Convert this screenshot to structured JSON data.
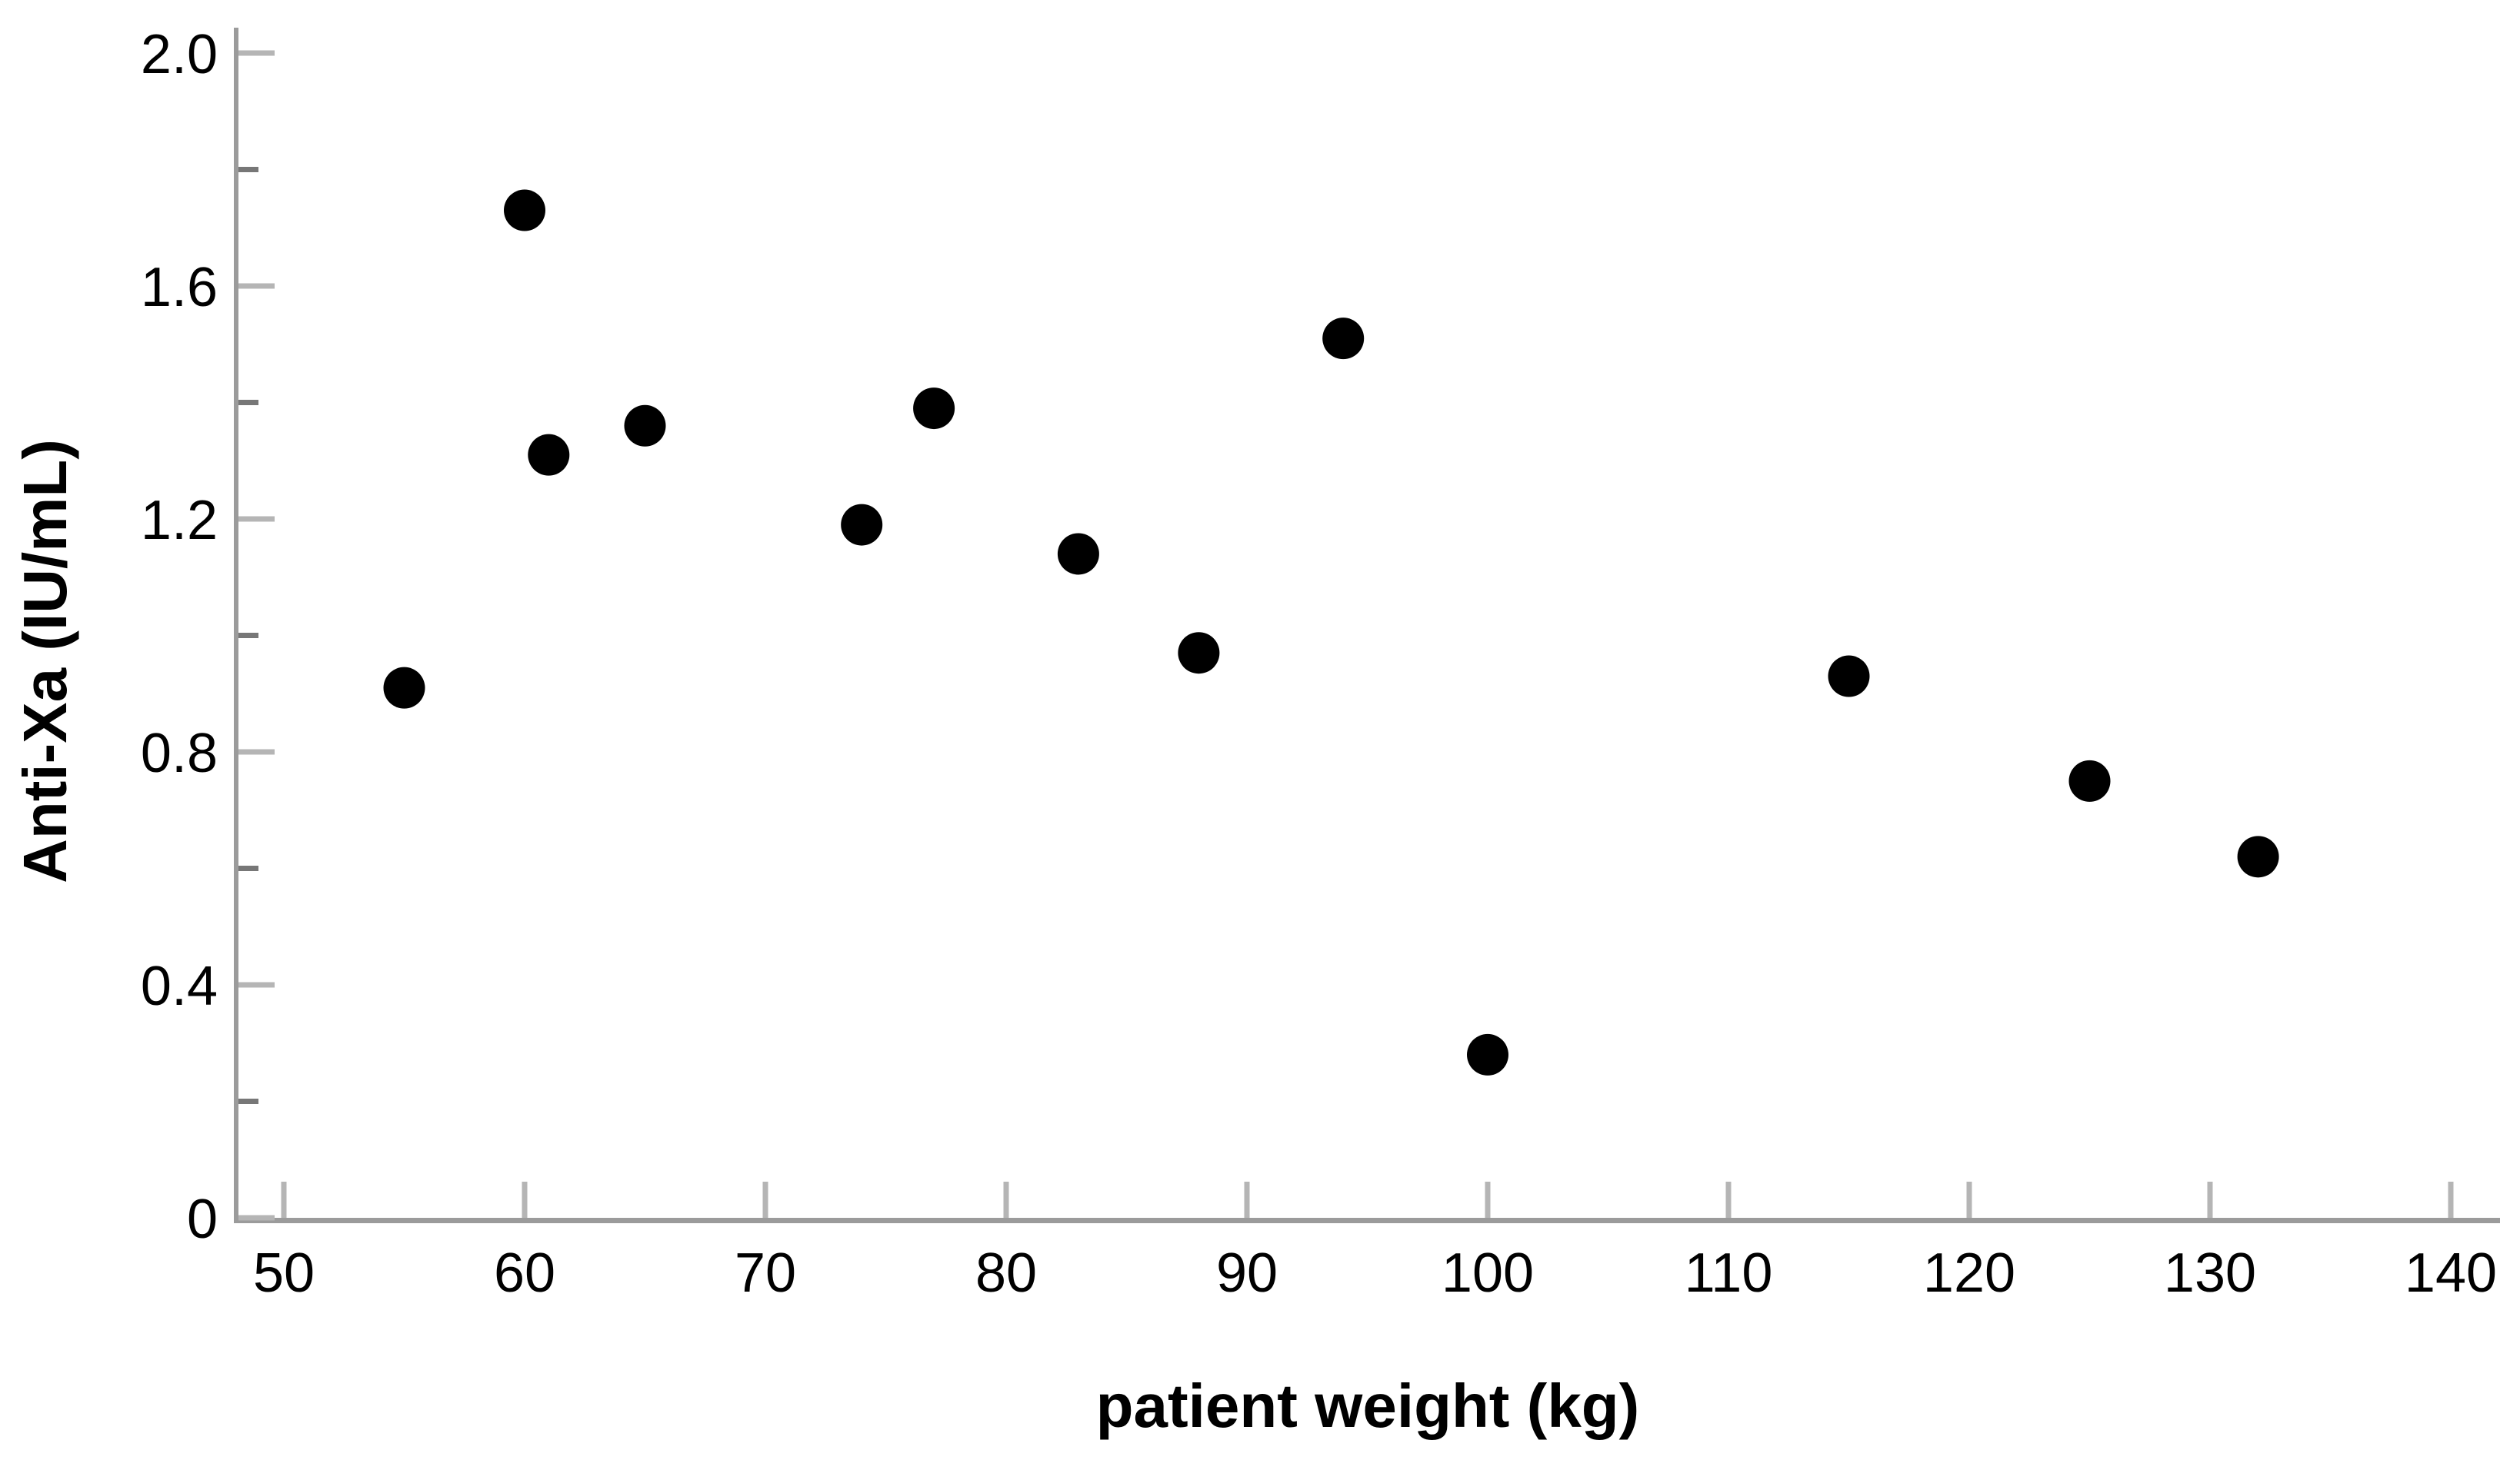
{
  "chart_data": {
    "type": "scatter",
    "title": "",
    "xlabel": "patient weight (kg)",
    "ylabel": "Anti-Xa (IU/mL)",
    "points": [
      {
        "x": 55,
        "y": 0.91
      },
      {
        "x": 60,
        "y": 1.73
      },
      {
        "x": 61,
        "y": 1.31
      },
      {
        "x": 65,
        "y": 1.36
      },
      {
        "x": 74,
        "y": 1.19
      },
      {
        "x": 77,
        "y": 1.39
      },
      {
        "x": 83,
        "y": 1.14
      },
      {
        "x": 88,
        "y": 0.97
      },
      {
        "x": 94,
        "y": 1.51
      },
      {
        "x": 100,
        "y": 0.28
      },
      {
        "x": 115,
        "y": 0.93
      },
      {
        "x": 125,
        "y": 0.75
      },
      {
        "x": 132,
        "y": 0.62
      }
    ],
    "xlim": [
      48,
      142
    ],
    "ylim": [
      0,
      2.05
    ],
    "x_ticks": [
      50,
      60,
      70,
      80,
      90,
      100,
      110,
      120,
      130,
      140
    ],
    "x_tick_labels": [
      "50",
      "60",
      "70",
      "80",
      "90",
      "100",
      "110",
      "120",
      "130",
      "140"
    ],
    "y_ticks": [
      0,
      0.4,
      0.8,
      1.2,
      1.6,
      2.0
    ],
    "y_tick_labels": [
      "0",
      "0.4",
      "0.8",
      "1.2",
      "1.6",
      "2.0"
    ],
    "y_minor_ticks": [
      0.2,
      0.6,
      1.0,
      1.4,
      1.8
    ],
    "grid": false,
    "legend": null,
    "marker": {
      "shape": "circle",
      "color": "#000000",
      "radius_px": 27
    },
    "colors": {
      "background": "#ffffff",
      "axis_line": "#9b9b9b",
      "major_tick": "#b5b5b5",
      "minor_tick": "#777777",
      "text": "#000000"
    }
  }
}
